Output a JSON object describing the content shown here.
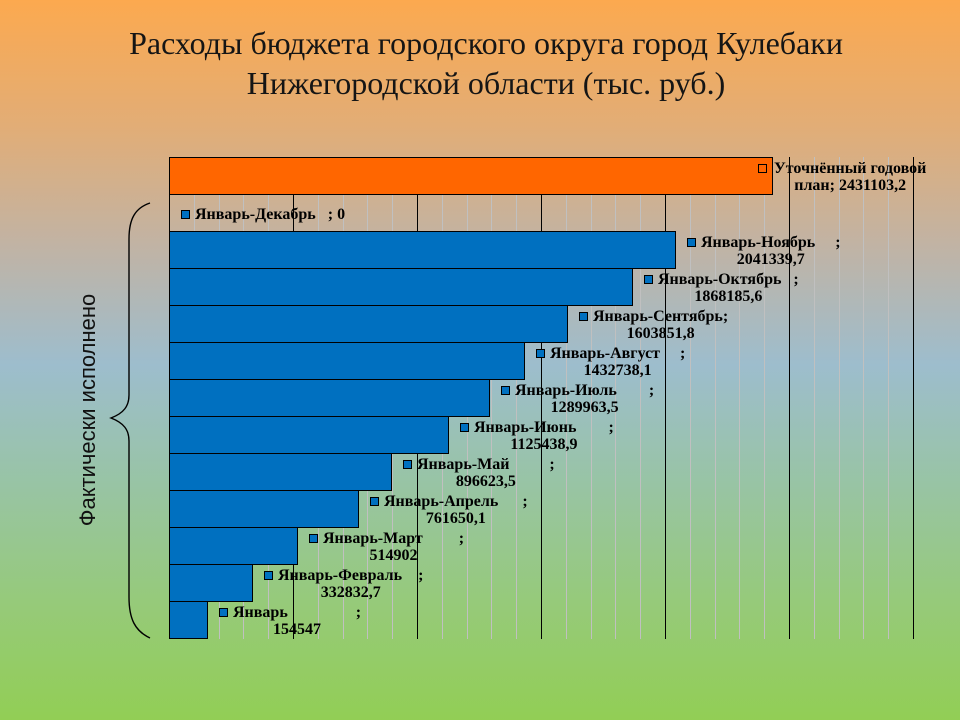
{
  "title": {
    "line1": "Расходы бюджета городского округа город Кулебаки",
    "line2": "Нижегородской области (тыс. руб.)"
  },
  "side_label": "Фактически исполнено",
  "colors": {
    "plan_bar": "#FF6600",
    "fact_bar": "#0070C0",
    "bar_border": "#000000",
    "major_gridline": "#000000",
    "minor_gridline": "#C0C0C0",
    "text": "#000000",
    "background_top": "#FCA94F",
    "background_middle_tan": "#C1B3A4",
    "background_middle_blue": "#9DBDCD",
    "background_bottom": "#92CE55"
  },
  "chart_data": {
    "type": "bar",
    "orientation": "horizontal",
    "title": "Расходы бюджета городского округа город Кулебаки Нижегородской области (тыс. руб.)",
    "xlabel": "",
    "ylabel": "Фактически исполнено",
    "axis": {
      "min": 0,
      "max": 3000000,
      "major_step": 500000,
      "minor_step": 100000
    },
    "grid": {
      "major": true,
      "minor": true
    },
    "legend_position": "none",
    "categories": [
      "Уточнённый годовой план",
      "Январь-Декабрь",
      "Январь-Ноябрь",
      "Январь-Октябрь",
      "Январь-Сентябрь",
      "Январь-Август",
      "Январь-Июль",
      "Январь-Июнь",
      "Январь-Май",
      "Январь-Апрель",
      "Январь-Март",
      "Январь-Февраль",
      "Январь"
    ],
    "values": [
      2431103.2,
      0,
      2041339.7,
      1868185.6,
      1603851.8,
      1432738.1,
      1289963.5,
      1125438.9,
      896623.5,
      761650.1,
      514902,
      332832.7,
      154547
    ],
    "rows": [
      {
        "series": "plan",
        "label_line1": "Уточнённый годовой",
        "label_line2": "план; 2431103,2",
        "value": 2431103.2
      },
      {
        "series": "fact",
        "label_line1": "Январь-Декабрь   ; 0",
        "label_line2": null,
        "value": 0
      },
      {
        "series": "fact",
        "label_line1": "Январь-Ноябрь     ;",
        "label_line2": "2041339,7",
        "value": 2041339.7
      },
      {
        "series": "fact",
        "label_line1": "Январь-Октябрь   ;",
        "label_line2": "1868185,6",
        "value": 1868185.6
      },
      {
        "series": "fact",
        "label_line1": "Январь-Сентябрь;",
        "label_line2": "1603851,8",
        "value": 1603851.8
      },
      {
        "series": "fact",
        "label_line1": "Январь-Август     ;",
        "label_line2": "1432738,1",
        "value": 1432738.1
      },
      {
        "series": "fact",
        "label_line1": "Январь-Июль        ;",
        "label_line2": "1289963,5",
        "value": 1289963.5
      },
      {
        "series": "fact",
        "label_line1": "Январь-Июнь        ;",
        "label_line2": "1125438,9",
        "value": 1125438.9
      },
      {
        "series": "fact",
        "label_line1": "Январь-Май          ;",
        "label_line2": "896623,5",
        "value": 896623.5
      },
      {
        "series": "fact",
        "label_line1": "Январь-Апрель      ;",
        "label_line2": "761650,1",
        "value": 761650.1
      },
      {
        "series": "fact",
        "label_line1": "Январь-Март         ;",
        "label_line2": "514902",
        "value": 514902
      },
      {
        "series": "fact",
        "label_line1": "Январь-Февраль    ;",
        "label_line2": "332832,7",
        "value": 332832.7
      },
      {
        "series": "fact",
        "label_line1": "Январь                 ;",
        "label_line2": "154547",
        "value": 154547
      }
    ]
  }
}
